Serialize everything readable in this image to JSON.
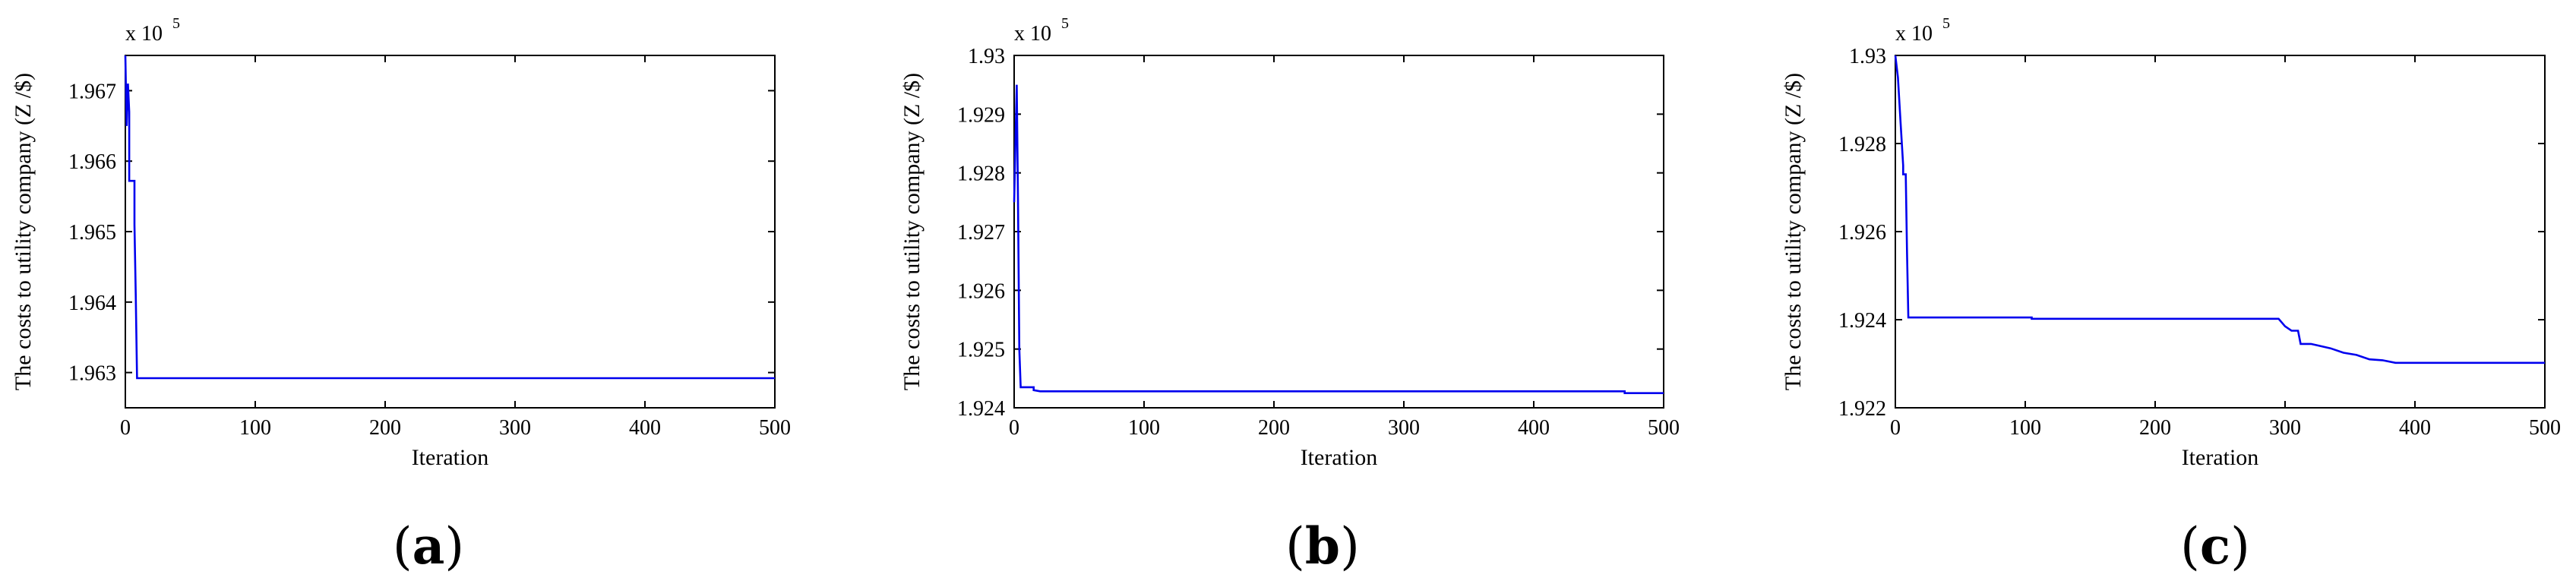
{
  "chart_data": [
    {
      "type": "line",
      "panel_label": "(a)",
      "caption_open": "(",
      "caption_letter": "a",
      "caption_close": ")",
      "xlabel": "Iteration",
      "ylabel": "The costs to utility company (Z /$)",
      "multiplier": "x 10",
      "multiplier_exp": "5",
      "xlim": [
        0,
        500
      ],
      "ylim": [
        1.9625,
        1.9675
      ],
      "xticks": [
        0,
        100,
        200,
        300,
        400,
        500
      ],
      "yticks": [
        1.963,
        1.964,
        1.965,
        1.966,
        1.967
      ],
      "ytick_labels": [
        "1.963",
        "1.964",
        "1.965",
        "1.966",
        "1.967"
      ],
      "line_color": "#0000ee",
      "series": [
        {
          "x": [
            0,
            1,
            2,
            3,
            3,
            7,
            7,
            8,
            9,
            500
          ],
          "y": [
            1.9675,
            1.9665,
            1.9671,
            1.9667,
            1.96572,
            1.96572,
            1.9651,
            1.9641,
            1.96292,
            1.96292
          ]
        }
      ]
    },
    {
      "type": "line",
      "panel_label": "(b)",
      "caption_open": "(",
      "caption_letter": "b",
      "caption_close": ")",
      "xlabel": "Iteration",
      "ylabel": "The costs to utility company (Z /$)",
      "multiplier": "x 10",
      "multiplier_exp": "5",
      "xlim": [
        0,
        500
      ],
      "ylim": [
        1.924,
        1.93
      ],
      "xticks": [
        0,
        100,
        200,
        300,
        400,
        500
      ],
      "yticks": [
        1.924,
        1.925,
        1.926,
        1.927,
        1.928,
        1.929,
        1.93
      ],
      "ytick_labels": [
        "1.924",
        "1.925",
        "1.926",
        "1.927",
        "1.928",
        "1.929",
        "1.93"
      ],
      "line_color": "#0000ee",
      "series": [
        {
          "x": [
            0,
            2,
            3,
            4,
            5,
            15,
            15,
            20,
            470,
            470,
            500
          ],
          "y": [
            1.9275,
            1.9295,
            1.9275,
            1.925,
            1.92435,
            1.92435,
            1.9243,
            1.92428,
            1.92428,
            1.92425,
            1.92425
          ]
        }
      ]
    },
    {
      "type": "line",
      "panel_label": "(c)",
      "caption_open": "(",
      "caption_letter": "c",
      "caption_close": ")",
      "xlabel": "Iteration",
      "ylabel": "The costs to utility company (Z /$)",
      "multiplier": "x 10",
      "multiplier_exp": "5",
      "xlim": [
        0,
        500
      ],
      "ylim": [
        1.922,
        1.93
      ],
      "xticks": [
        0,
        100,
        200,
        300,
        400,
        500
      ],
      "yticks": [
        1.922,
        1.924,
        1.926,
        1.928,
        1.93
      ],
      "ytick_labels": [
        "1.922",
        "1.924",
        "1.926",
        "1.928",
        "1.93"
      ],
      "line_color": "#0000ee",
      "series": [
        {
          "x": [
            0,
            2,
            4,
            6,
            6,
            8,
            9,
            10,
            105,
            105,
            295,
            300,
            305,
            310,
            312,
            320,
            335,
            345,
            355,
            365,
            375,
            385,
            500
          ],
          "y": [
            1.93,
            1.9295,
            1.9285,
            1.9275,
            1.9273,
            1.9273,
            1.9255,
            1.92405,
            1.92405,
            1.92402,
            1.92402,
            1.92385,
            1.92375,
            1.92375,
            1.92345,
            1.92345,
            1.92335,
            1.92325,
            1.9232,
            1.9231,
            1.92308,
            1.92302,
            1.92302
          ]
        }
      ]
    }
  ]
}
